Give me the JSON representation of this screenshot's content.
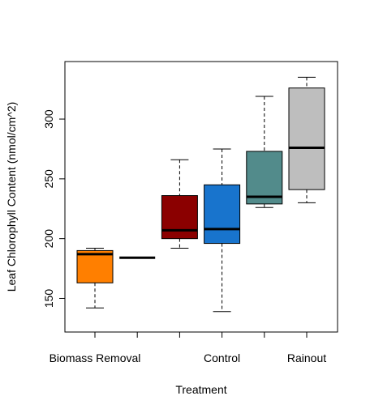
{
  "chart_data": {
    "type": "boxplot",
    "title": "",
    "xlabel": "Treatment",
    "ylabel": "Leaf Chlorophyll Content (nmol/cm^2)",
    "ylim": [
      130,
      340
    ],
    "yticks": [
      150,
      200,
      250,
      300
    ],
    "grid": false,
    "legend": "none",
    "tick_labels": [
      "Biomass Removal",
      "",
      "",
      "Control",
      "",
      "Rainout"
    ],
    "boxes": [
      {
        "color": "#ff7f00",
        "whisker_low": 142,
        "q1": 163,
        "median": 187,
        "q3": 190,
        "whisker_high": 192
      },
      {
        "color": "#000000",
        "whisker_low": 184,
        "q1": 184,
        "median": 184,
        "q3": 184,
        "whisker_high": 184
      },
      {
        "color": "#8b0000",
        "whisker_low": 192,
        "q1": 200,
        "median": 207,
        "q3": 236,
        "whisker_high": 266
      },
      {
        "color": "#1874cd",
        "whisker_low": 139,
        "q1": 196,
        "median": 208,
        "q3": 245,
        "whisker_high": 275
      },
      {
        "color": "#528b8b",
        "whisker_low": 226,
        "q1": 229,
        "median": 235,
        "q3": 273,
        "whisker_high": 319
      },
      {
        "color": "#bebebe",
        "whisker_low": 230,
        "q1": 241,
        "median": 276,
        "q3": 326,
        "whisker_high": 335
      }
    ]
  }
}
